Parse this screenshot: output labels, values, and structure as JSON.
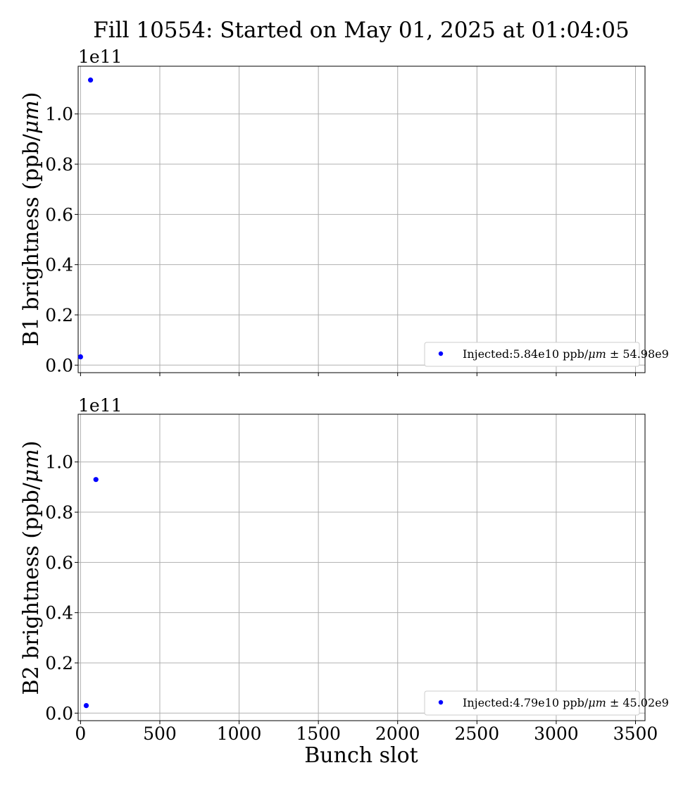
{
  "title": "Fill 10554: Started on May 01, 2025 at 01:04:05",
  "colors": {
    "marker": "#0000ff",
    "grid": "#b0b0b0"
  },
  "chart_data": [
    {
      "type": "scatter",
      "ylabel_prefix": "B1 brightness (ppb/",
      "ylabel_unit": "μm",
      "ylabel_suffix": ")",
      "xlabel": "",
      "offset_text": "1e11",
      "xlim": [
        -15,
        3560
      ],
      "ylim": [
        -3000000000.0,
        119000000000.0
      ],
      "xticks": [
        0,
        500,
        1000,
        1500,
        2000,
        2500,
        3000,
        3500
      ],
      "xtick_labels_visible": false,
      "yticks": [
        0.0,
        20000000000.0,
        40000000000.0,
        60000000000.0,
        80000000000.0,
        100000000000.0
      ],
      "ytick_labels": [
        "0.0",
        "0.2",
        "0.4",
        "0.6",
        "0.8",
        "1.0"
      ],
      "grid": true,
      "legend_position": "lower-right",
      "series": [
        {
          "name_prefix": "Injected:5.84e10 ppb/",
          "name_unit": "μm",
          "name_suffix": " ± 54.98e9",
          "points": [
            {
              "x": 0,
              "y": 3300000000.0
            },
            {
              "x": 63,
              "y": 113500000000.0
            }
          ]
        }
      ]
    },
    {
      "type": "scatter",
      "ylabel_prefix": "B2 brightness (ppb/",
      "ylabel_unit": "μm",
      "ylabel_suffix": ")",
      "xlabel": "Bunch slot",
      "offset_text": "1e11",
      "xlim": [
        -15,
        3560
      ],
      "ylim": [
        -3000000000.0,
        119000000000.0
      ],
      "xticks": [
        0,
        500,
        1000,
        1500,
        2000,
        2500,
        3000,
        3500
      ],
      "xtick_labels": [
        "0",
        "500",
        "1000",
        "1500",
        "2000",
        "2500",
        "3000",
        "3500"
      ],
      "xtick_labels_visible": true,
      "yticks": [
        0.0,
        20000000000.0,
        40000000000.0,
        60000000000.0,
        80000000000.0,
        100000000000.0
      ],
      "ytick_labels": [
        "0.0",
        "0.2",
        "0.4",
        "0.6",
        "0.8",
        "1.0"
      ],
      "grid": true,
      "legend_position": "lower-right",
      "series": [
        {
          "name_prefix": "Injected:4.79e10 ppb/",
          "name_unit": "μm",
          "name_suffix": " ± 45.02e9",
          "points": [
            {
              "x": 36,
              "y": 3000000000.0
            },
            {
              "x": 97,
              "y": 93000000000.0
            }
          ]
        }
      ]
    }
  ]
}
